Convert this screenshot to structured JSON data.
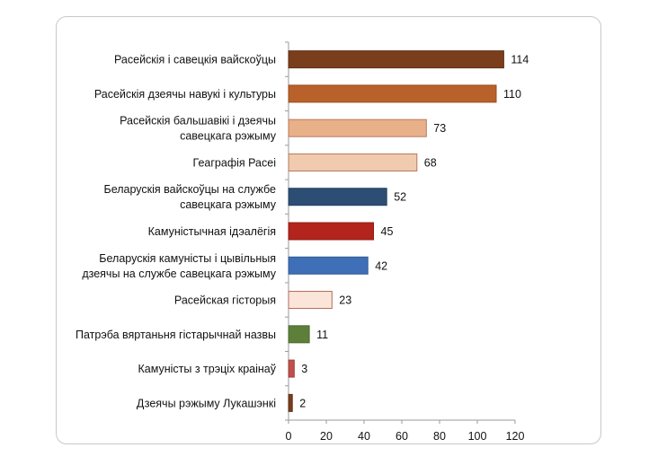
{
  "chart_data": {
    "type": "bar",
    "orientation": "horizontal",
    "title": "",
    "xlabel": "",
    "ylabel": "",
    "xlim": [
      0,
      120
    ],
    "xticks": [
      0,
      20,
      40,
      60,
      80,
      100,
      120
    ],
    "grid": false,
    "categories": [
      [
        "Расейскія і савецкія вайскоўцы"
      ],
      [
        "Расейскія дзеячы навукі і культуры"
      ],
      [
        "Расейскія бальшавікі і дзеячы",
        "савецкага рэжыму"
      ],
      [
        "Геаграфія Расеі"
      ],
      [
        "Беларускія вайскоўцы на службе",
        "савецкага рэжыму"
      ],
      [
        "Камуністычная ідэалёгія"
      ],
      [
        "Беларускія камуністы і цывільныя",
        "дзеячы на службе савецкага рэжыму"
      ],
      [
        "Расейская гісторыя"
      ],
      [
        "Патрэба вяртаньня гістарычнай назвы"
      ],
      [
        "Камуністы з трэціх краінаў"
      ],
      [
        "Дзеячы рэжыму Лукашэнкі"
      ]
    ],
    "values": [
      114,
      110,
      73,
      68,
      52,
      45,
      42,
      23,
      11,
      3,
      2
    ],
    "colors": [
      "#7a3e1d",
      "#b8612b",
      "#e9b18a",
      "#f1cbb0",
      "#2d4e74",
      "#b3241c",
      "#3f6fb6",
      "#fbe5d9",
      "#5d7f3a",
      "#c0504d",
      "#7a3e1d"
    ],
    "borders": [
      "#5e2e14",
      "#9a4c1e",
      "#b8775a",
      "#b8775a",
      "#23405f",
      "#8e1c15",
      "#335a93",
      "#b56a5a",
      "#4a6a2e",
      "#9b3f3c",
      "#5e2e14"
    ]
  }
}
